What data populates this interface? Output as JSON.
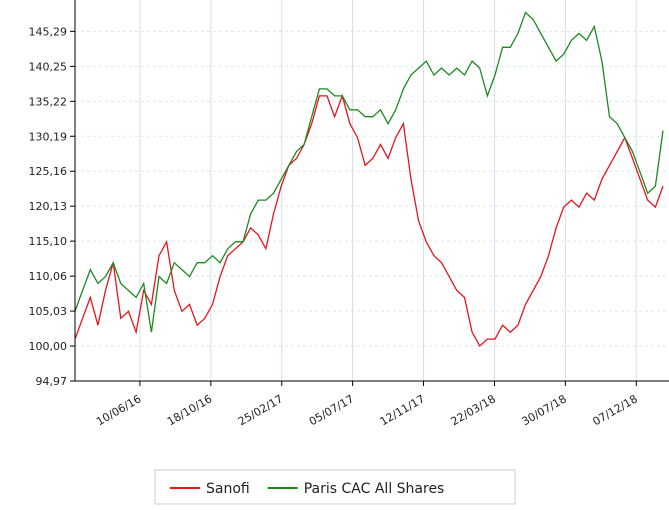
{
  "chart_data": {
    "type": "line",
    "x": [
      "2016-02-12",
      "2016-02-26",
      "2016-03-11",
      "2016-03-25",
      "2016-04-08",
      "2016-04-22",
      "2016-05-06",
      "2016-05-20",
      "2016-06-03",
      "2016-06-17",
      "2016-07-01",
      "2016-07-15",
      "2016-07-29",
      "2016-08-12",
      "2016-08-26",
      "2016-09-09",
      "2016-09-23",
      "2016-10-07",
      "2016-10-21",
      "2016-11-04",
      "2016-11-18",
      "2016-12-02",
      "2016-12-16",
      "2016-12-30",
      "2017-01-13",
      "2017-01-27",
      "2017-02-10",
      "2017-02-24",
      "2017-03-10",
      "2017-03-24",
      "2017-04-07",
      "2017-04-21",
      "2017-05-05",
      "2017-05-19",
      "2017-06-02",
      "2017-06-16",
      "2017-06-30",
      "2017-07-14",
      "2017-07-28",
      "2017-08-11",
      "2017-08-25",
      "2017-09-08",
      "2017-09-22",
      "2017-10-06",
      "2017-10-20",
      "2017-11-03",
      "2017-11-17",
      "2017-12-01",
      "2017-12-15",
      "2017-12-29",
      "2018-01-12",
      "2018-01-26",
      "2018-02-09",
      "2018-02-23",
      "2018-03-09",
      "2018-03-23",
      "2018-04-06",
      "2018-04-20",
      "2018-05-04",
      "2018-05-18",
      "2018-06-01",
      "2018-06-15",
      "2018-06-29",
      "2018-07-13",
      "2018-07-27",
      "2018-08-10",
      "2018-08-24",
      "2018-09-07",
      "2018-09-21",
      "2018-10-05",
      "2018-10-19",
      "2018-11-02",
      "2018-11-16",
      "2018-11-30",
      "2018-12-14",
      "2018-12-28",
      "2019-01-11",
      "2019-01-25"
    ],
    "series": [
      {
        "name": "Sanofi",
        "color": "#e8141c",
        "values": [
          101,
          104,
          107,
          103,
          108,
          112,
          104,
          105,
          102,
          108,
          106,
          113,
          115,
          108,
          105,
          106,
          103,
          104,
          106,
          110,
          113,
          114,
          115,
          117,
          116,
          114,
          119,
          123,
          126,
          127,
          129,
          132,
          136,
          136,
          133,
          136,
          132,
          130,
          126,
          127,
          129,
          127,
          130,
          132,
          124,
          118,
          115,
          113,
          112,
          110,
          108,
          107,
          102,
          100,
          101,
          101,
          103,
          102,
          103,
          106,
          108,
          110,
          113,
          117,
          120,
          121,
          120,
          122,
          121,
          124,
          126,
          128,
          130,
          127,
          124,
          121,
          120,
          123
        ]
      },
      {
        "name": "Paris CAC All Shares",
        "color": "#1e8a1e",
        "values": [
          105,
          108,
          111,
          109,
          110,
          112,
          109,
          108,
          107,
          109,
          102,
          110,
          109,
          112,
          111,
          110,
          112,
          112,
          113,
          112,
          114,
          115,
          115,
          119,
          121,
          121,
          122,
          124,
          126,
          128,
          129,
          133,
          137,
          137,
          136,
          136,
          134,
          134,
          133,
          133,
          134,
          132,
          134,
          137,
          139,
          140,
          141,
          139,
          140,
          139,
          140,
          139,
          141,
          140,
          136,
          139,
          143,
          143,
          145,
          148,
          147,
          145,
          143,
          141,
          142,
          144,
          145,
          144,
          146,
          141,
          133,
          132,
          130,
          128,
          125,
          122,
          123,
          131
        ]
      }
    ],
    "xlim": [
      "2016-02-12",
      "2019-02-05"
    ],
    "xticks": [
      {
        "value": "2016-06-10",
        "label": "10/06/16"
      },
      {
        "value": "2016-10-18",
        "label": "18/10/16"
      },
      {
        "value": "2017-02-25",
        "label": "25/02/17"
      },
      {
        "value": "2017-07-05",
        "label": "05/07/17"
      },
      {
        "value": "2017-11-12",
        "label": "12/11/17"
      },
      {
        "value": "2018-03-22",
        "label": "22/03/18"
      },
      {
        "value": "2018-07-30",
        "label": "30/07/18"
      },
      {
        "value": "2018-12-07",
        "label": "07/12/18"
      }
    ],
    "ylim": [
      94.97,
      149.8
    ],
    "yticks": [
      {
        "value": 94.97,
        "label": "94,97"
      },
      {
        "value": 100.0,
        "label": "100,00"
      },
      {
        "value": 105.03,
        "label": "105,03"
      },
      {
        "value": 110.06,
        "label": "110,06"
      },
      {
        "value": 115.1,
        "label": "115,10"
      },
      {
        "value": 120.13,
        "label": "120,13"
      },
      {
        "value": 125.16,
        "label": "125,16"
      },
      {
        "value": 130.19,
        "label": "130,19"
      },
      {
        "value": 135.22,
        "label": "135,22"
      },
      {
        "value": 140.25,
        "label": "140,25"
      },
      {
        "value": 145.29,
        "label": "145,29"
      }
    ],
    "grid": true,
    "legend": "bottom"
  }
}
